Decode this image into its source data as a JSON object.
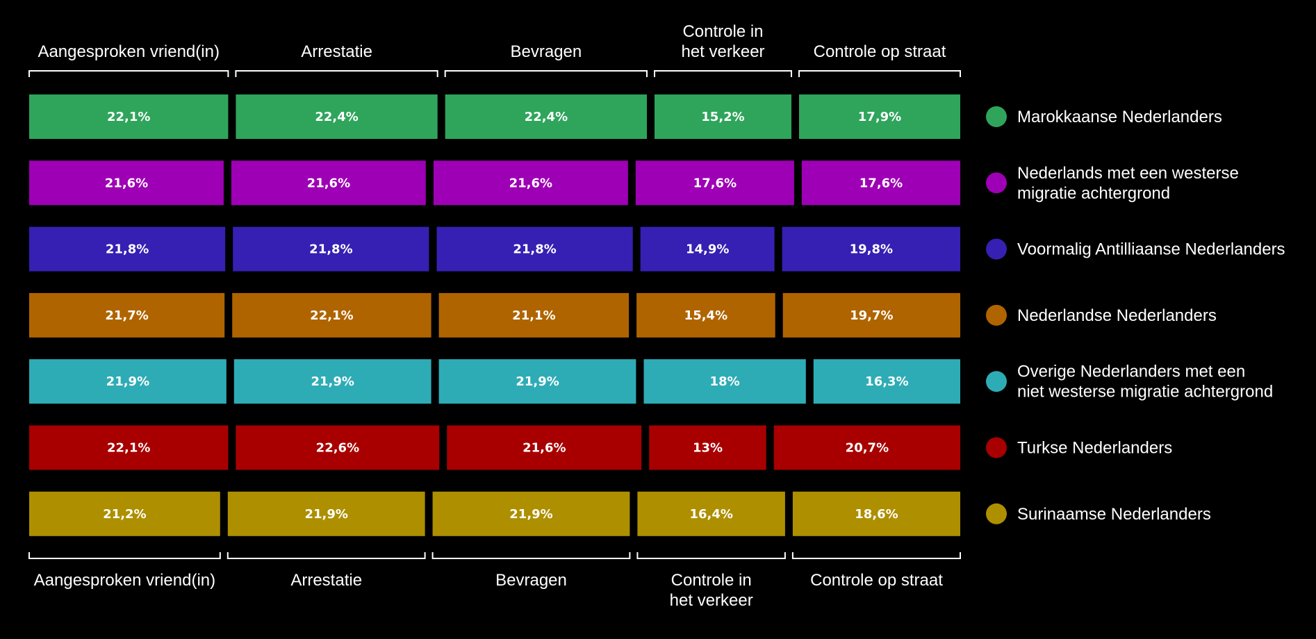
{
  "chart_data": {
    "type": "bar",
    "layout": "stacked-horizontal-percent",
    "categories": [
      "Aangesproken vriend(in)",
      "Arrestatie",
      "Bevragen",
      "Controle in het verkeer",
      "Controle op straat"
    ],
    "category_label_lines": [
      [
        "Aangesproken vriend(in)"
      ],
      [
        "Arrestatie"
      ],
      [
        "Bevragen"
      ],
      [
        "Controle in",
        "het verkeer"
      ],
      [
        "Controle op straat"
      ]
    ],
    "value_suffix": "%",
    "decimal_separator": ",",
    "series": [
      {
        "name": "Marokkaanse Nederlanders",
        "name_lines": [
          "Marokkaanse Nederlanders"
        ],
        "color": "#2fa55b",
        "values": [
          22.1,
          22.4,
          22.4,
          15.2,
          17.9
        ]
      },
      {
        "name": "Nederlands met een westerse migratie achtergrond",
        "name_lines": [
          "Nederlands met een westerse",
          "migratie achtergrond"
        ],
        "color": "#9e00b5",
        "values": [
          21.6,
          21.6,
          21.6,
          17.6,
          17.6
        ]
      },
      {
        "name": "Voormalig Antilliaanse Nederlanders",
        "name_lines": [
          "Voormalig Antilliaanse Nederlanders"
        ],
        "color": "#3520b3",
        "values": [
          21.8,
          21.8,
          21.8,
          14.9,
          19.8
        ]
      },
      {
        "name": "Nederlandse Nederlanders",
        "name_lines": [
          "Nederlandse Nederlanders"
        ],
        "color": "#b06400",
        "values": [
          21.7,
          22.1,
          21.1,
          15.4,
          19.7
        ]
      },
      {
        "name": "Overige Nederlanders met een niet westerse migratie achtergrond",
        "name_lines": [
          "Overige Nederlanders met een",
          "niet westerse migratie achtergrond"
        ],
        "color": "#2eacb5",
        "values": [
          21.9,
          21.9,
          21.9,
          18,
          16.3
        ]
      },
      {
        "name": "Turkse Nederlanders",
        "name_lines": [
          "Turkse Nederlanders"
        ],
        "color": "#a80000",
        "values": [
          22.1,
          22.6,
          21.6,
          13,
          20.7
        ]
      },
      {
        "name": "Surinaamse Nederlanders",
        "name_lines": [
          "Surinaamse Nederlanders"
        ],
        "color": "#ad8f00",
        "values": [
          21.2,
          21.9,
          21.9,
          16.4,
          18.6
        ]
      }
    ],
    "legend_position": "right",
    "grid": false,
    "background": "#000000"
  }
}
